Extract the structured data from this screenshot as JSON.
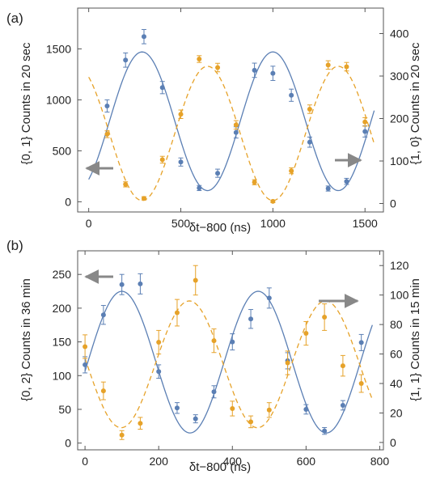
{
  "colors": {
    "blue": "#5b7fb4",
    "orange": "#e6a229",
    "frame": "#555555",
    "arrow": "#888888"
  },
  "chart_data": [
    {
      "type": "scatter",
      "panel_label": "(a)",
      "xlabel": "δt−800 (ns)",
      "ylabel_left": "{0, 1} Counts in 20 sec",
      "ylabel_right": "{1, 0} Counts in 20 sec",
      "xlim": [
        -60,
        1600
      ],
      "ylim_left": [
        -100,
        1900
      ],
      "ylim_right": [
        -20,
        460
      ],
      "xticks": [
        0,
        500,
        1000,
        1500
      ],
      "xtick_labels": [
        "0",
        "500",
        "1000",
        "1500"
      ],
      "yticks_left": [
        0,
        500,
        1000,
        1500
      ],
      "ytick_labels_left": [
        "0",
        "500",
        "1000",
        "1500"
      ],
      "yticks_right": [
        0,
        100,
        200,
        300,
        400
      ],
      "ytick_labels_right": [
        "0",
        "100",
        "200",
        "300",
        "400"
      ],
      "grid": false,
      "series": [
        {
          "axis": "left",
          "color": "blue",
          "style": "solid",
          "x": [
            100,
            200,
            300,
            400,
            500,
            600,
            700,
            800,
            900,
            1000,
            1100,
            1200,
            1300,
            1400,
            1500
          ],
          "y": [
            940,
            1390,
            1620,
            1120,
            390,
            135,
            280,
            680,
            1290,
            1260,
            1045,
            585,
            130,
            200,
            690
          ],
          "err": [
            60,
            70,
            70,
            60,
            40,
            25,
            40,
            55,
            70,
            70,
            60,
            50,
            25,
            30,
            55
          ],
          "fit": {
            "offset": 790,
            "amplitude": 680,
            "period": 710,
            "peak_at": 290,
            "x_range": [
              0,
              1550
            ]
          }
        },
        {
          "axis": "right",
          "color": "orange",
          "style": "dashed",
          "x": [
            100,
            200,
            300,
            400,
            500,
            600,
            700,
            800,
            900,
            1000,
            1100,
            1200,
            1300,
            1400,
            1500
          ],
          "y": [
            163,
            45,
            12,
            103,
            210,
            340,
            320,
            185,
            50,
            5,
            77,
            222,
            326,
            322,
            192
          ],
          "err": [
            8,
            6,
            4,
            8,
            10,
            8,
            10,
            10,
            6,
            3,
            7,
            10,
            10,
            10,
            10
          ],
          "fit": {
            "offset": 165,
            "amplitude": 158,
            "period": 710,
            "peak_at": 645,
            "x_range": [
              0,
              1550
            ]
          }
        }
      ]
    },
    {
      "type": "scatter",
      "panel_label": "(b)",
      "xlabel": "δt−800 (ns)",
      "ylabel_left": "{0, 2} Counts in 36 min",
      "ylabel_right": "{1, 1} Counts in 15 min",
      "xlim": [
        -20,
        810
      ],
      "ylim_left": [
        -10,
        285
      ],
      "ylim_right": [
        -5,
        130
      ],
      "xticks": [
        0,
        200,
        400,
        600,
        800
      ],
      "xtick_labels": [
        "0",
        "200",
        "400",
        "600",
        "800"
      ],
      "yticks_left": [
        0,
        50,
        100,
        150,
        200,
        250
      ],
      "ytick_labels_left": [
        "0",
        "50",
        "100",
        "150",
        "200",
        "250"
      ],
      "yticks_right": [
        0,
        20,
        40,
        60,
        80,
        100,
        120
      ],
      "ytick_labels_right": [
        "0",
        "20",
        "40",
        "60",
        "80",
        "100",
        "120"
      ],
      "grid": false,
      "series": [
        {
          "axis": "left",
          "color": "blue",
          "style": "solid",
          "x": [
            0,
            50,
            100,
            150,
            200,
            250,
            300,
            350,
            400,
            450,
            500,
            550,
            600,
            650,
            700,
            750
          ],
          "y": [
            116,
            190,
            235,
            236,
            106,
            52,
            36,
            76,
            150,
            184,
            215,
            122,
            50,
            18,
            56,
            149
          ],
          "err": [
            12,
            14,
            15,
            15,
            10,
            8,
            6,
            9,
            12,
            14,
            15,
            12,
            7,
            5,
            7,
            12
          ],
          "fit": {
            "offset": 120,
            "amplitude": 105,
            "period": 370,
            "peak_at": 100,
            "x_range": [
              0,
              780
            ]
          }
        },
        {
          "axis": "right",
          "color": "orange",
          "style": "dashed",
          "x": [
            0,
            50,
            100,
            150,
            200,
            250,
            300,
            350,
            400,
            450,
            500,
            550,
            600,
            650,
            700,
            750
          ],
          "y": [
            65,
            35,
            5,
            13,
            68,
            88,
            110,
            69,
            23,
            14,
            22,
            54,
            74,
            85,
            52,
            40
          ],
          "err": [
            8,
            6,
            3,
            4,
            8,
            9,
            10,
            8,
            5,
            4,
            5,
            8,
            8,
            9,
            7,
            6
          ],
          "fit": {
            "offset": 53,
            "amplitude": 43,
            "period": 370,
            "peak_at": 283,
            "x_range": [
              0,
              780
            ]
          }
        }
      ]
    }
  ]
}
